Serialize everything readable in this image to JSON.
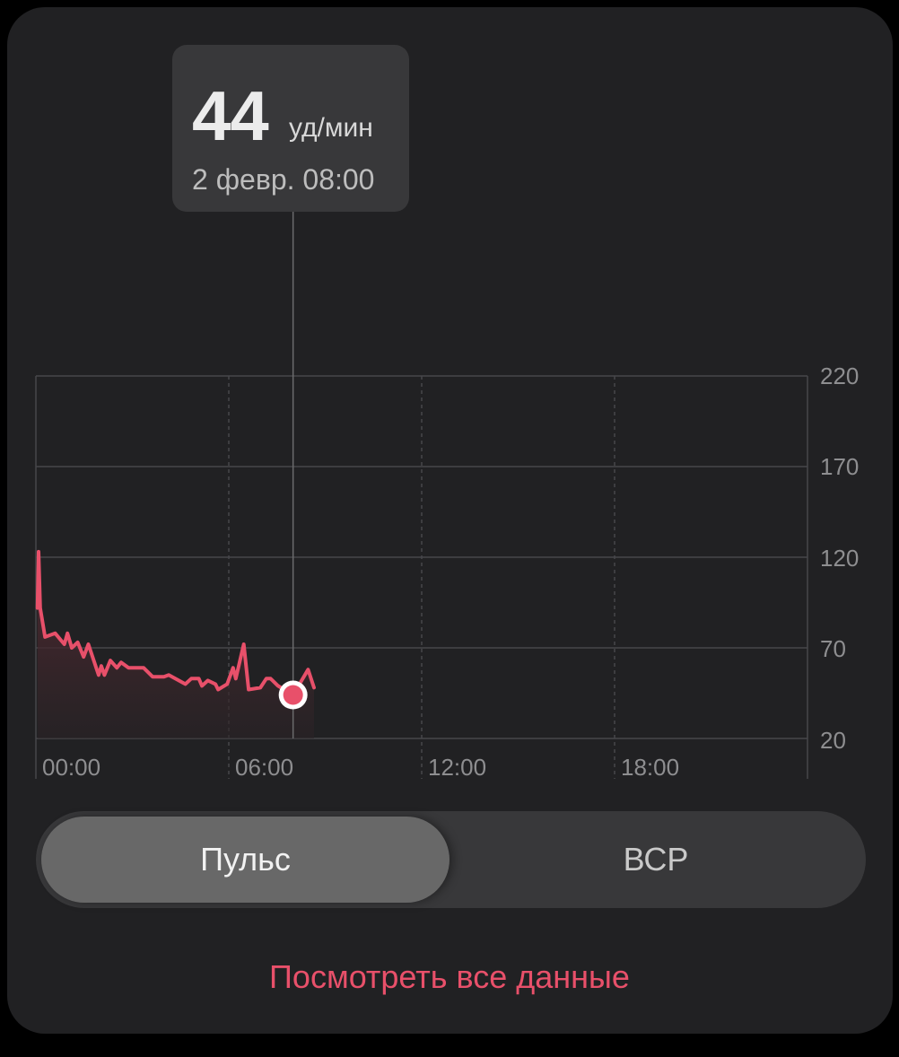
{
  "tooltip": {
    "value": "44",
    "unit": "уд/мин",
    "date": "2 февр. 08:00"
  },
  "tabs": [
    {
      "label": "Пульс",
      "selected": true
    },
    {
      "label": "ВСР",
      "selected": false
    }
  ],
  "view_all_link": "Посмотреть все данные",
  "colors": {
    "accent": "#e8506a",
    "card": "#212123",
    "tooltip": "#38383a"
  },
  "chart_data": {
    "type": "area",
    "x_ticks": [
      "00:00",
      "06:00",
      "12:00",
      "18:00"
    ],
    "y_ticks": [
      "220",
      "170",
      "120",
      "70",
      "20"
    ],
    "ylim": [
      20,
      220
    ],
    "xlim": [
      "00:00",
      "24:00"
    ],
    "grid": true,
    "selected_point": {
      "x": "08:00",
      "y": 44
    },
    "points": [
      [
        "00:03",
        92
      ],
      [
        "00:05",
        123
      ],
      [
        "00:08",
        92
      ],
      [
        "00:17",
        76
      ],
      [
        "00:36",
        78
      ],
      [
        "00:53",
        72
      ],
      [
        "00:59",
        78
      ],
      [
        "01:07",
        70
      ],
      [
        "01:18",
        73
      ],
      [
        "01:29",
        65
      ],
      [
        "01:38",
        72
      ],
      [
        "01:57",
        55
      ],
      [
        "02:02",
        60
      ],
      [
        "02:08",
        55
      ],
      [
        "02:19",
        63
      ],
      [
        "02:31",
        59
      ],
      [
        "02:39",
        62
      ],
      [
        "02:53",
        59
      ],
      [
        "03:21",
        59
      ],
      [
        "03:38",
        54
      ],
      [
        "03:59",
        54
      ],
      [
        "04:08",
        55
      ],
      [
        "04:39",
        50
      ],
      [
        "04:50",
        53
      ],
      [
        "05:04",
        53
      ],
      [
        "05:10",
        49
      ],
      [
        "05:21",
        52
      ],
      [
        "05:35",
        50
      ],
      [
        "05:40",
        47
      ],
      [
        "05:57",
        50
      ],
      [
        "06:08",
        59
      ],
      [
        "06:13",
        53
      ],
      [
        "06:28",
        72
      ],
      [
        "06:37",
        47
      ],
      [
        "06:59",
        48
      ],
      [
        "07:10",
        53
      ],
      [
        "07:18",
        53
      ],
      [
        "07:32",
        49
      ],
      [
        "08:00",
        44
      ],
      [
        "08:28",
        58
      ],
      [
        "08:39",
        48
      ]
    ]
  }
}
